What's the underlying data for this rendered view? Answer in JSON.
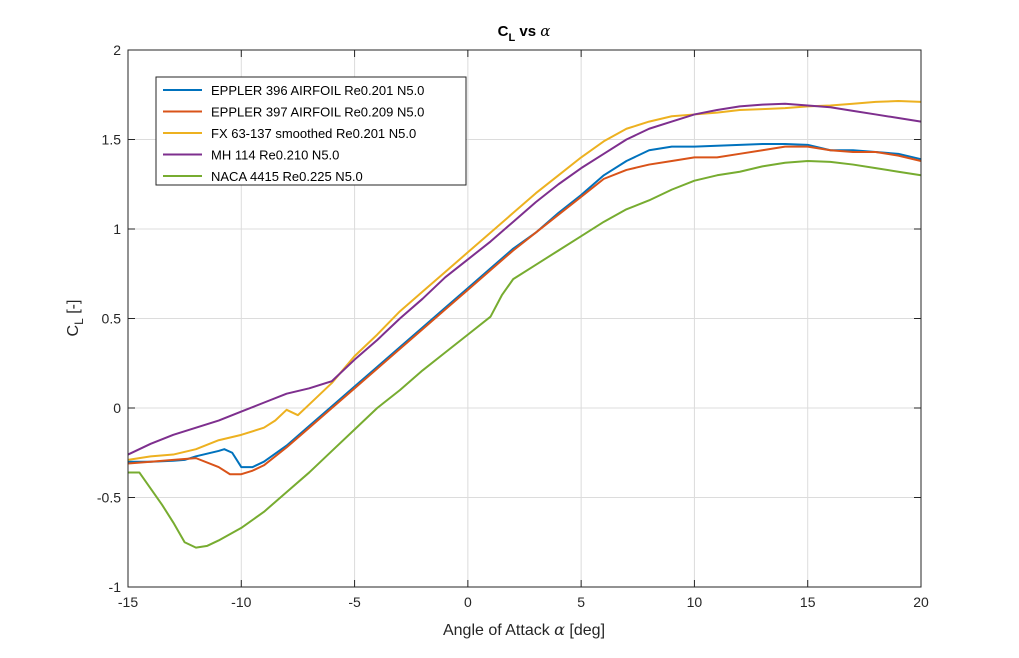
{
  "chart_data": {
    "type": "line",
    "title": {
      "main": "C",
      "sub": "L",
      "rest": " vs ",
      "sym": "α"
    },
    "xlabel": {
      "text": "Angle of Attack ",
      "sym": "α",
      "unit": " [deg]"
    },
    "ylabel": {
      "main": "C",
      "sub": "L",
      "unit": " [-]"
    },
    "xlim": [
      -15,
      20
    ],
    "ylim": [
      -1,
      2
    ],
    "xticks": [
      -15,
      -10,
      -5,
      0,
      5,
      10,
      15,
      20
    ],
    "yticks": [
      -1,
      -0.5,
      0,
      0.5,
      1,
      1.5,
      2
    ],
    "xtick_labels": [
      "-15",
      "-10",
      "-5",
      "0",
      "5",
      "10",
      "15",
      "20"
    ],
    "ytick_labels": [
      "-1",
      "-0.5",
      "0",
      "0.5",
      "1",
      "1.5",
      "2"
    ],
    "grid": true,
    "legend_position": "top-left",
    "series": [
      {
        "name": "EPPLER 396 AIRFOIL Re0.201 N5.0",
        "color": "#0072BD",
        "points": [
          [
            -15,
            -0.3
          ],
          [
            -14,
            -0.3
          ],
          [
            -13,
            -0.295
          ],
          [
            -12.5,
            -0.29
          ],
          [
            -12,
            -0.27
          ],
          [
            -11,
            -0.24
          ],
          [
            -10.75,
            -0.23
          ],
          [
            -10.4,
            -0.25
          ],
          [
            -10,
            -0.33
          ],
          [
            -9.5,
            -0.33
          ],
          [
            -9,
            -0.3
          ],
          [
            -8,
            -0.21
          ],
          [
            -7,
            -0.1
          ],
          [
            -6,
            0.01
          ],
          [
            -5,
            0.12
          ],
          [
            -4,
            0.23
          ],
          [
            -3,
            0.34
          ],
          [
            -2,
            0.45
          ],
          [
            -1,
            0.56
          ],
          [
            0,
            0.67
          ],
          [
            1,
            0.78
          ],
          [
            2,
            0.89
          ],
          [
            3,
            0.98
          ],
          [
            4,
            1.09
          ],
          [
            5,
            1.19
          ],
          [
            6,
            1.3
          ],
          [
            7,
            1.38
          ],
          [
            8,
            1.44
          ],
          [
            9,
            1.46
          ],
          [
            10,
            1.46
          ],
          [
            11,
            1.465
          ],
          [
            12,
            1.47
          ],
          [
            13,
            1.475
          ],
          [
            14,
            1.475
          ],
          [
            15,
            1.47
          ],
          [
            16,
            1.44
          ],
          [
            17,
            1.44
          ],
          [
            18,
            1.43
          ],
          [
            19,
            1.42
          ],
          [
            20,
            1.39
          ]
        ]
      },
      {
        "name": "EPPLER 397 AIRFOIL Re0.209 N5.0",
        "color": "#D95319",
        "points": [
          [
            -15,
            -0.31
          ],
          [
            -14,
            -0.3
          ],
          [
            -13,
            -0.29
          ],
          [
            -12,
            -0.28
          ],
          [
            -11,
            -0.33
          ],
          [
            -10.5,
            -0.37
          ],
          [
            -10,
            -0.37
          ],
          [
            -9.5,
            -0.35
          ],
          [
            -9,
            -0.32
          ],
          [
            -8,
            -0.22
          ],
          [
            -7,
            -0.11
          ],
          [
            -6,
            0.0
          ],
          [
            -5,
            0.11
          ],
          [
            -4,
            0.22
          ],
          [
            -3,
            0.33
          ],
          [
            -2,
            0.44
          ],
          [
            -1,
            0.55
          ],
          [
            0,
            0.66
          ],
          [
            1,
            0.77
          ],
          [
            2,
            0.88
          ],
          [
            3,
            0.98
          ],
          [
            4,
            1.08
          ],
          [
            5,
            1.18
          ],
          [
            6,
            1.28
          ],
          [
            7,
            1.33
          ],
          [
            8,
            1.36
          ],
          [
            9,
            1.38
          ],
          [
            10,
            1.4
          ],
          [
            11,
            1.4
          ],
          [
            12,
            1.42
          ],
          [
            13,
            1.44
          ],
          [
            14,
            1.46
          ],
          [
            15,
            1.46
          ],
          [
            16,
            1.44
          ],
          [
            17,
            1.43
          ],
          [
            18,
            1.43
          ],
          [
            19,
            1.41
          ],
          [
            20,
            1.38
          ]
        ]
      },
      {
        "name": "FX 63-137 smoothed Re0.201 N5.0",
        "color": "#EDB120",
        "points": [
          [
            -15,
            -0.29
          ],
          [
            -14,
            -0.27
          ],
          [
            -13,
            -0.26
          ],
          [
            -12,
            -0.23
          ],
          [
            -11,
            -0.18
          ],
          [
            -10,
            -0.15
          ],
          [
            -9,
            -0.11
          ],
          [
            -8.5,
            -0.07
          ],
          [
            -8,
            -0.01
          ],
          [
            -7.5,
            -0.04
          ],
          [
            -7,
            0.02
          ],
          [
            -6,
            0.14
          ],
          [
            -5,
            0.29
          ],
          [
            -4,
            0.41
          ],
          [
            -3,
            0.54
          ],
          [
            -2,
            0.65
          ],
          [
            -1,
            0.76
          ],
          [
            0,
            0.87
          ],
          [
            1,
            0.98
          ],
          [
            2,
            1.09
          ],
          [
            3,
            1.2
          ],
          [
            4,
            1.3
          ],
          [
            5,
            1.4
          ],
          [
            6,
            1.49
          ],
          [
            7,
            1.56
          ],
          [
            8,
            1.6
          ],
          [
            9,
            1.63
          ],
          [
            10,
            1.64
          ],
          [
            11,
            1.65
          ],
          [
            12,
            1.665
          ],
          [
            13,
            1.67
          ],
          [
            14,
            1.675
          ],
          [
            15,
            1.685
          ],
          [
            16,
            1.69
          ],
          [
            17,
            1.7
          ],
          [
            18,
            1.71
          ],
          [
            19,
            1.715
          ],
          [
            20,
            1.71
          ]
        ]
      },
      {
        "name": "MH 114 Re0.210 N5.0",
        "color": "#7E2F8E",
        "points": [
          [
            -15,
            -0.26
          ],
          [
            -14,
            -0.2
          ],
          [
            -13,
            -0.15
          ],
          [
            -12,
            -0.11
          ],
          [
            -11,
            -0.07
          ],
          [
            -10,
            -0.02
          ],
          [
            -9,
            0.03
          ],
          [
            -8,
            0.08
          ],
          [
            -7,
            0.11
          ],
          [
            -6,
            0.15
          ],
          [
            -5,
            0.27
          ],
          [
            -4,
            0.38
          ],
          [
            -3,
            0.5
          ],
          [
            -2,
            0.61
          ],
          [
            -1,
            0.73
          ],
          [
            0,
            0.83
          ],
          [
            1,
            0.93
          ],
          [
            2,
            1.04
          ],
          [
            3,
            1.15
          ],
          [
            4,
            1.25
          ],
          [
            5,
            1.34
          ],
          [
            6,
            1.42
          ],
          [
            7,
            1.5
          ],
          [
            8,
            1.56
          ],
          [
            9,
            1.6
          ],
          [
            10,
            1.64
          ],
          [
            11,
            1.665
          ],
          [
            12,
            1.685
          ],
          [
            13,
            1.695
          ],
          [
            14,
            1.7
          ],
          [
            15,
            1.69
          ],
          [
            16,
            1.68
          ],
          [
            17,
            1.66
          ],
          [
            18,
            1.64
          ],
          [
            19,
            1.62
          ],
          [
            20,
            1.6
          ]
        ]
      },
      {
        "name": "NACA 4415 Re0.225 N5.0",
        "color": "#77AC30",
        "points": [
          [
            -15,
            -0.36
          ],
          [
            -14.5,
            -0.36
          ],
          [
            -14,
            -0.45
          ],
          [
            -13.5,
            -0.54
          ],
          [
            -13,
            -0.64
          ],
          [
            -12.5,
            -0.75
          ],
          [
            -12,
            -0.78
          ],
          [
            -11.5,
            -0.77
          ],
          [
            -11,
            -0.74
          ],
          [
            -10,
            -0.67
          ],
          [
            -9,
            -0.58
          ],
          [
            -8,
            -0.47
          ],
          [
            -7,
            -0.36
          ],
          [
            -6,
            -0.24
          ],
          [
            -5,
            -0.12
          ],
          [
            -4,
            0.0
          ],
          [
            -3,
            0.1
          ],
          [
            -2,
            0.21
          ],
          [
            -1,
            0.31
          ],
          [
            0,
            0.41
          ],
          [
            1,
            0.51
          ],
          [
            1.5,
            0.63
          ],
          [
            2,
            0.72
          ],
          [
            3,
            0.8
          ],
          [
            4,
            0.88
          ],
          [
            5,
            0.96
          ],
          [
            6,
            1.04
          ],
          [
            7,
            1.11
          ],
          [
            8,
            1.16
          ],
          [
            9,
            1.22
          ],
          [
            10,
            1.27
          ],
          [
            11,
            1.3
          ],
          [
            12,
            1.32
          ],
          [
            13,
            1.35
          ],
          [
            14,
            1.37
          ],
          [
            15,
            1.38
          ],
          [
            16,
            1.375
          ],
          [
            17,
            1.36
          ],
          [
            18,
            1.34
          ],
          [
            19,
            1.32
          ],
          [
            20,
            1.3
          ]
        ]
      }
    ]
  }
}
